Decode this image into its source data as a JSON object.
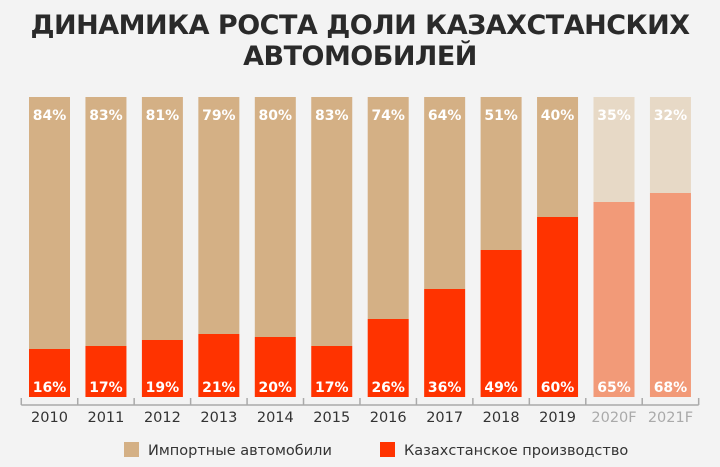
{
  "chart_data": {
    "type": "bar",
    "stacked": true,
    "title_lines": [
      "ДИНАМИКА РОСТА ДОЛИ КАЗАХСТАНСКИХ",
      "АВТОМОБИЛЕЙ"
    ],
    "categories": [
      "2010",
      "2011",
      "2012",
      "2013",
      "2014",
      "2015",
      "2016",
      "2017",
      "2018",
      "2019",
      "2020F",
      "2021F"
    ],
    "forecast": [
      false,
      false,
      false,
      false,
      false,
      false,
      false,
      false,
      false,
      false,
      true,
      true
    ],
    "series": [
      {
        "name": "Казахстанское производство",
        "values": [
          16,
          17,
          19,
          21,
          20,
          17,
          26,
          36,
          49,
          60,
          65,
          68
        ],
        "color": "#ff3300",
        "forecast_color": "#f29a78"
      },
      {
        "name": "Импортные автомобили",
        "values": [
          84,
          83,
          81,
          79,
          80,
          83,
          74,
          64,
          51,
          40,
          35,
          32
        ],
        "color": "#d4b085",
        "forecast_color": "#e7d9c6"
      }
    ],
    "value_suffix": "%",
    "ylim": [
      0,
      100
    ],
    "grid": false,
    "legend_placement": "bottom",
    "legend_order": [
      1,
      0
    ]
  }
}
